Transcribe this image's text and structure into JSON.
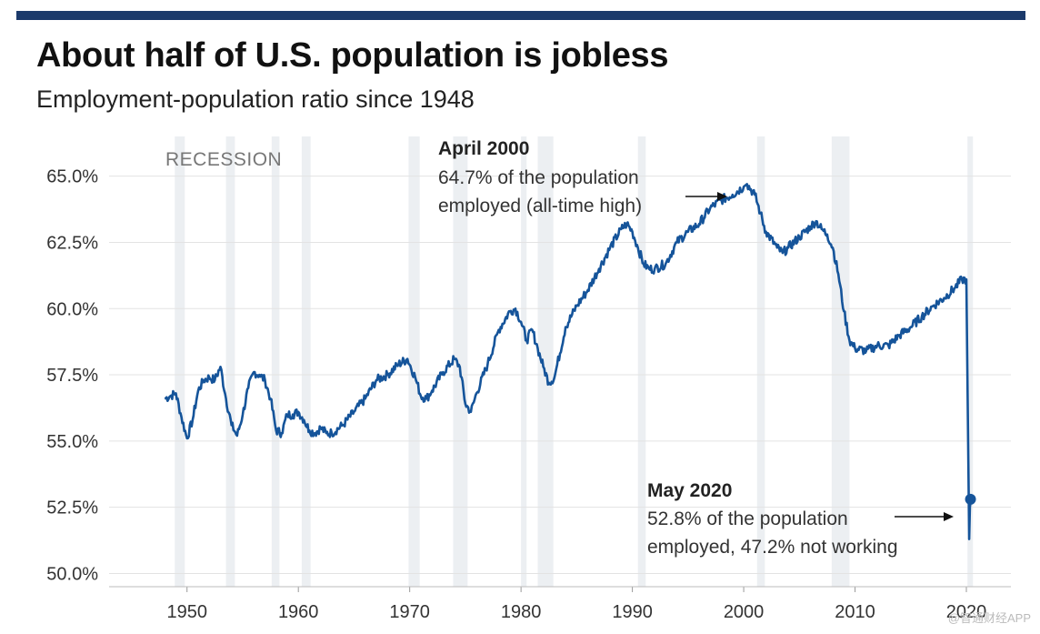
{
  "header": {
    "title": "About half of U.S. population is jobless",
    "subtitle": "Employment-population ratio since 1948"
  },
  "watermark": "@智通财经APP",
  "colors": {
    "line": "#15549a",
    "recession": "#eceff2",
    "grid": "#e3e3e3",
    "topbar": "#1b3a6b"
  },
  "chart_data": {
    "type": "line",
    "title": "About half of U.S. population is jobless",
    "subtitle": "Employment-population ratio since 1948",
    "xlabel": "",
    "ylabel": "",
    "xlim": [
      1943,
      2024
    ],
    "ylim": [
      49.5,
      66.5
    ],
    "x_ticks": [
      1950,
      1960,
      1970,
      1980,
      1990,
      2000,
      2010,
      2020
    ],
    "x_tick_labels": [
      "1950",
      "1960",
      "1970",
      "1980",
      "1990",
      "2000",
      "2010",
      "2020"
    ],
    "y_ticks": [
      50,
      52.5,
      55,
      57.5,
      60,
      62.5,
      65
    ],
    "y_tick_labels": [
      "50.0%",
      "52.5%",
      "55.0%",
      "57.5%",
      "60.0%",
      "62.5%",
      "65.0%"
    ],
    "grid": "horizontal",
    "recession_label": "RECESSION",
    "recessions": [
      [
        1948.9,
        1949.8
      ],
      [
        1953.5,
        1954.3
      ],
      [
        1957.6,
        1958.3
      ],
      [
        1960.3,
        1961.1
      ],
      [
        1969.9,
        1970.9
      ],
      [
        1973.9,
        1975.2
      ],
      [
        1980.0,
        1980.5
      ],
      [
        1981.5,
        1982.9
      ],
      [
        1990.5,
        1991.2
      ],
      [
        2001.2,
        2001.9
      ],
      [
        2007.9,
        2009.5
      ],
      [
        2020.1,
        2020.4
      ]
    ],
    "series": [
      {
        "name": "Employment-population ratio",
        "x": [
          1948.0,
          1948.5,
          1949.0,
          1949.5,
          1950.0,
          1950.5,
          1951.0,
          1951.5,
          1952.0,
          1952.5,
          1953.0,
          1953.5,
          1954.0,
          1954.5,
          1955.0,
          1955.5,
          1956.0,
          1956.5,
          1957.0,
          1957.5,
          1958.0,
          1958.5,
          1959.0,
          1959.5,
          1960.0,
          1960.5,
          1961.0,
          1961.5,
          1962.0,
          1962.5,
          1963.0,
          1964.0,
          1965.0,
          1966.0,
          1967.0,
          1968.0,
          1969.0,
          1969.8,
          1970.5,
          1971.0,
          1971.5,
          1972.0,
          1973.0,
          1974.0,
          1974.5,
          1975.0,
          1975.5,
          1976.0,
          1977.0,
          1978.0,
          1979.0,
          1979.5,
          1980.0,
          1980.5,
          1981.0,
          1981.5,
          1982.0,
          1982.5,
          1983.0,
          1984.0,
          1985.0,
          1986.0,
          1987.0,
          1988.0,
          1989.0,
          1989.5,
          1990.0,
          1990.5,
          1991.0,
          1991.5,
          1992.0,
          1993.0,
          1994.0,
          1995.0,
          1996.0,
          1997.0,
          1998.0,
          1999.0,
          2000.0,
          2000.3,
          2001.0,
          2001.5,
          2002.0,
          2003.0,
          2003.5,
          2004.0,
          2005.0,
          2006.0,
          2006.5,
          2007.0,
          2007.5,
          2008.0,
          2008.5,
          2009.0,
          2009.5,
          2010.0,
          2011.0,
          2012.0,
          2013.0,
          2014.0,
          2015.0,
          2016.0,
          2017.0,
          2018.0,
          2019.0,
          2019.6,
          2020.0,
          2020.25,
          2020.32,
          2020.4
        ],
        "values": [
          56.6,
          56.7,
          56.8,
          55.9,
          55.1,
          55.8,
          56.9,
          57.3,
          57.4,
          57.3,
          57.8,
          56.6,
          55.6,
          55.2,
          56.0,
          57.0,
          57.6,
          57.5,
          57.3,
          56.6,
          55.4,
          55.3,
          56.0,
          56.0,
          56.1,
          55.8,
          55.4,
          55.3,
          55.5,
          55.3,
          55.3,
          55.6,
          56.1,
          56.6,
          57.3,
          57.5,
          57.9,
          58.1,
          57.4,
          56.7,
          56.6,
          56.9,
          57.6,
          58.1,
          57.8,
          56.4,
          56.1,
          56.8,
          57.9,
          59.2,
          59.9,
          60.0,
          59.5,
          58.8,
          59.2,
          58.5,
          57.8,
          57.2,
          57.4,
          59.3,
          60.1,
          60.7,
          61.5,
          62.3,
          63.0,
          63.2,
          62.9,
          62.3,
          61.7,
          61.5,
          61.5,
          61.7,
          62.5,
          62.9,
          63.2,
          63.8,
          64.1,
          64.3,
          64.6,
          64.7,
          64.3,
          63.6,
          62.9,
          62.3,
          62.1,
          62.3,
          62.7,
          63.1,
          63.3,
          63.0,
          62.8,
          62.3,
          61.3,
          59.9,
          58.8,
          58.5,
          58.4,
          58.6,
          58.6,
          59.0,
          59.3,
          59.7,
          60.1,
          60.4,
          60.8,
          61.1,
          61.1,
          51.3,
          52.5,
          52.8
        ]
      }
    ],
    "highlight_point": {
      "x": 2020.37,
      "y": 52.8
    },
    "annotations": [
      {
        "title": "April 2000",
        "lines": [
          "64.7% of the population",
          "employed (all-time high)"
        ]
      },
      {
        "title": "May 2020",
        "lines": [
          "52.8% of the population",
          "employed, 47.2% not working"
        ]
      }
    ]
  }
}
